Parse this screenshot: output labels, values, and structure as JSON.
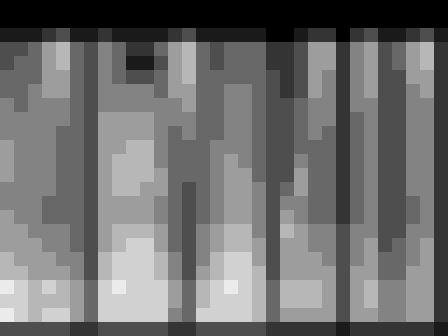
{
  "chart_data": {
    "type": "heatmap",
    "tick_labels": false,
    "zlim": [
      0,
      9
    ],
    "cells": [
      [
        0,
        0,
        0,
        0,
        0,
        0,
        0,
        0,
        0,
        0,
        0,
        0,
        0,
        0,
        0,
        0,
        0,
        0,
        0,
        0,
        0,
        0,
        0,
        0,
        0,
        0,
        0,
        0,
        0,
        0,
        0,
        0
      ],
      [
        0,
        0,
        0,
        0,
        0,
        0,
        0,
        0,
        0,
        0,
        0,
        0,
        0,
        0,
        0,
        0,
        0,
        0,
        0,
        0,
        0,
        0,
        0,
        0,
        0,
        0,
        0,
        0,
        0,
        0,
        0,
        0
      ],
      [
        1,
        1,
        1,
        2,
        3,
        1,
        1,
        2,
        1,
        1,
        1,
        1,
        2,
        3,
        1,
        1,
        1,
        1,
        1,
        0,
        0,
        1,
        2,
        2,
        0,
        2,
        3,
        1,
        1,
        2,
        3,
        1
      ],
      [
        3,
        3,
        4,
        6,
        7,
        4,
        3,
        5,
        4,
        2,
        2,
        4,
        6,
        7,
        4,
        3,
        4,
        4,
        4,
        2,
        2,
        3,
        6,
        6,
        2,
        5,
        6,
        3,
        4,
        6,
        7,
        2
      ],
      [
        3,
        4,
        4,
        6,
        7,
        4,
        3,
        5,
        4,
        1,
        1,
        3,
        6,
        7,
        4,
        3,
        4,
        4,
        4,
        2,
        2,
        3,
        6,
        6,
        2,
        5,
        6,
        3,
        4,
        6,
        7,
        2
      ],
      [
        4,
        4,
        4,
        6,
        6,
        4,
        3,
        5,
        4,
        3,
        3,
        4,
        6,
        7,
        4,
        4,
        4,
        4,
        4,
        3,
        2,
        3,
        6,
        5,
        2,
        5,
        6,
        3,
        3,
        6,
        6,
        2
      ],
      [
        4,
        4,
        5,
        6,
        6,
        4,
        3,
        5,
        5,
        5,
        5,
        4,
        6,
        6,
        4,
        4,
        5,
        5,
        4,
        3,
        2,
        3,
        6,
        5,
        2,
        5,
        6,
        3,
        3,
        5,
        6,
        2
      ],
      [
        5,
        4,
        5,
        5,
        5,
        4,
        3,
        5,
        5,
        5,
        5,
        5,
        5,
        6,
        4,
        4,
        5,
        5,
        4,
        3,
        3,
        4,
        5,
        5,
        2,
        5,
        5,
        3,
        3,
        5,
        5,
        2
      ],
      [
        5,
        5,
        5,
        5,
        5,
        4,
        3,
        6,
        6,
        6,
        6,
        5,
        5,
        5,
        4,
        4,
        5,
        5,
        4,
        3,
        3,
        4,
        5,
        5,
        2,
        4,
        5,
        3,
        3,
        5,
        5,
        2
      ],
      [
        5,
        5,
        5,
        5,
        4,
        4,
        3,
        6,
        6,
        6,
        6,
        5,
        4,
        5,
        4,
        4,
        5,
        5,
        4,
        3,
        3,
        4,
        5,
        4,
        2,
        4,
        5,
        3,
        3,
        5,
        5,
        2
      ],
      [
        6,
        5,
        5,
        5,
        4,
        4,
        3,
        6,
        6,
        7,
        7,
        5,
        4,
        4,
        4,
        5,
        5,
        5,
        4,
        3,
        3,
        4,
        4,
        4,
        2,
        4,
        5,
        3,
        3,
        5,
        5,
        2
      ],
      [
        6,
        5,
        5,
        5,
        4,
        4,
        3,
        6,
        7,
        7,
        7,
        5,
        4,
        4,
        4,
        5,
        6,
        5,
        4,
        3,
        3,
        5,
        4,
        4,
        2,
        4,
        5,
        3,
        3,
        5,
        5,
        2
      ],
      [
        6,
        5,
        5,
        5,
        4,
        4,
        3,
        6,
        7,
        7,
        7,
        6,
        4,
        4,
        4,
        5,
        6,
        6,
        4,
        3,
        3,
        6,
        4,
        4,
        2,
        4,
        5,
        3,
        3,
        5,
        5,
        2
      ],
      [
        5,
        5,
        5,
        5,
        4,
        4,
        3,
        6,
        7,
        7,
        6,
        6,
        4,
        3,
        4,
        5,
        6,
        6,
        5,
        3,
        4,
        6,
        4,
        4,
        2,
        4,
        5,
        3,
        3,
        5,
        5,
        2
      ],
      [
        5,
        5,
        5,
        4,
        4,
        4,
        3,
        6,
        6,
        6,
        6,
        5,
        4,
        3,
        4,
        5,
        6,
        6,
        5,
        3,
        5,
        5,
        4,
        4,
        2,
        4,
        5,
        3,
        3,
        4,
        5,
        2
      ],
      [
        6,
        5,
        5,
        4,
        4,
        4,
        3,
        6,
        6,
        6,
        6,
        5,
        4,
        3,
        4,
        5,
        6,
        6,
        5,
        3,
        6,
        5,
        4,
        4,
        2,
        4,
        5,
        3,
        3,
        4,
        5,
        2
      ],
      [
        6,
        6,
        5,
        5,
        5,
        4,
        3,
        6,
        7,
        7,
        7,
        6,
        4,
        3,
        5,
        6,
        7,
        7,
        5,
        3,
        7,
        6,
        5,
        5,
        3,
        5,
        5,
        3,
        3,
        5,
        5,
        2
      ],
      [
        6,
        6,
        6,
        5,
        5,
        4,
        3,
        6,
        7,
        8,
        8,
        6,
        4,
        3,
        5,
        6,
        7,
        7,
        6,
        3,
        6,
        6,
        5,
        5,
        3,
        5,
        6,
        3,
        4,
        5,
        6,
        2
      ],
      [
        7,
        6,
        6,
        6,
        5,
        5,
        3,
        7,
        8,
        8,
        8,
        7,
        5,
        3,
        5,
        7,
        8,
        8,
        6,
        3,
        6,
        6,
        6,
        5,
        3,
        5,
        6,
        4,
        4,
        5,
        6,
        2
      ],
      [
        7,
        7,
        6,
        6,
        6,
        5,
        3,
        7,
        8,
        8,
        8,
        7,
        5,
        3,
        6,
        7,
        8,
        8,
        7,
        3,
        6,
        6,
        6,
        6,
        3,
        6,
        6,
        4,
        4,
        6,
        6,
        2
      ],
      [
        9,
        8,
        7,
        8,
        7,
        6,
        4,
        8,
        9,
        8,
        8,
        8,
        6,
        4,
        7,
        8,
        9,
        8,
        7,
        4,
        7,
        7,
        7,
        6,
        3,
        6,
        7,
        5,
        5,
        6,
        6,
        2
      ],
      [
        8,
        8,
        7,
        7,
        7,
        6,
        4,
        8,
        8,
        8,
        8,
        8,
        6,
        4,
        7,
        8,
        8,
        8,
        7,
        4,
        7,
        7,
        7,
        6,
        3,
        6,
        7,
        5,
        5,
        6,
        6,
        2
      ],
      [
        9,
        8,
        7,
        8,
        8,
        6,
        4,
        8,
        8,
        8,
        8,
        8,
        5,
        4,
        8,
        8,
        8,
        8,
        7,
        4,
        6,
        6,
        6,
        6,
        3,
        6,
        6,
        5,
        5,
        6,
        6,
        2
      ],
      [
        3,
        3,
        3,
        3,
        3,
        2,
        2,
        3,
        3,
        3,
        3,
        3,
        2,
        2,
        3,
        3,
        3,
        3,
        3,
        2,
        2,
        2,
        2,
        2,
        1,
        2,
        2,
        2,
        2,
        2,
        2,
        1
      ]
    ]
  }
}
